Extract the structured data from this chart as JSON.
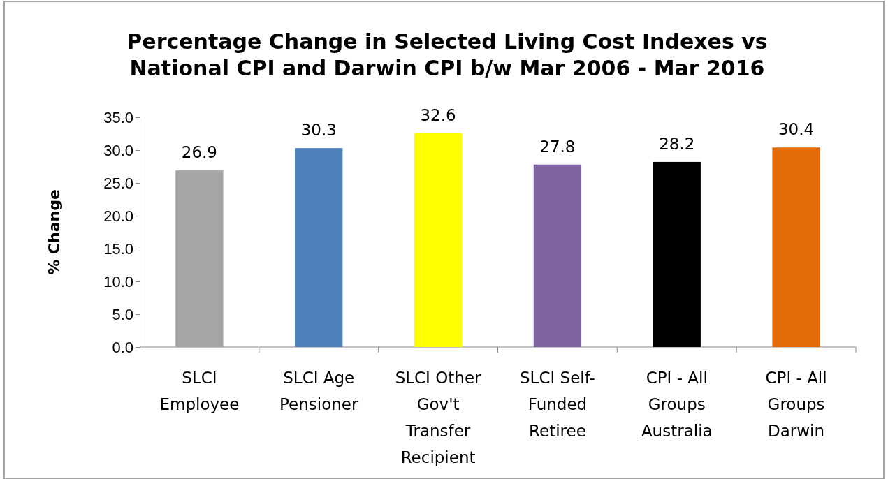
{
  "chart_data": {
    "type": "bar",
    "title": "Percentage Change in Selected Living Cost Indexes vs National CPI and Darwin CPI b/w Mar 2006 - Mar 2016",
    "ylabel": "% Change",
    "categories": [
      "SLCI Employee",
      "SLCI Age Pensioner",
      "SLCI Other Gov't Transfer Recipient",
      "SLCI Self-Funded Retiree",
      "CPI - All Groups Australia",
      "CPI - All Groups Darwin"
    ],
    "values": [
      26.9,
      30.3,
      32.6,
      27.8,
      28.2,
      30.4
    ],
    "colors": [
      "#a5a5a5",
      "#4f81bd",
      "#ffff00",
      "#8064a2",
      "#000000",
      "#e36c09"
    ],
    "ylim": [
      0,
      35
    ],
    "yticks": [
      {
        "value": 0,
        "label": "0.0"
      },
      {
        "value": 5,
        "label": "5.0"
      },
      {
        "value": 10,
        "label": "10.0"
      },
      {
        "value": 15,
        "label": "15.0"
      },
      {
        "value": 20,
        "label": "20.0"
      },
      {
        "value": 25,
        "label": "25.0"
      },
      {
        "value": 30,
        "label": "30.0"
      },
      {
        "value": 35,
        "label": "35.0"
      }
    ],
    "data_labels": true,
    "grid": false
  }
}
